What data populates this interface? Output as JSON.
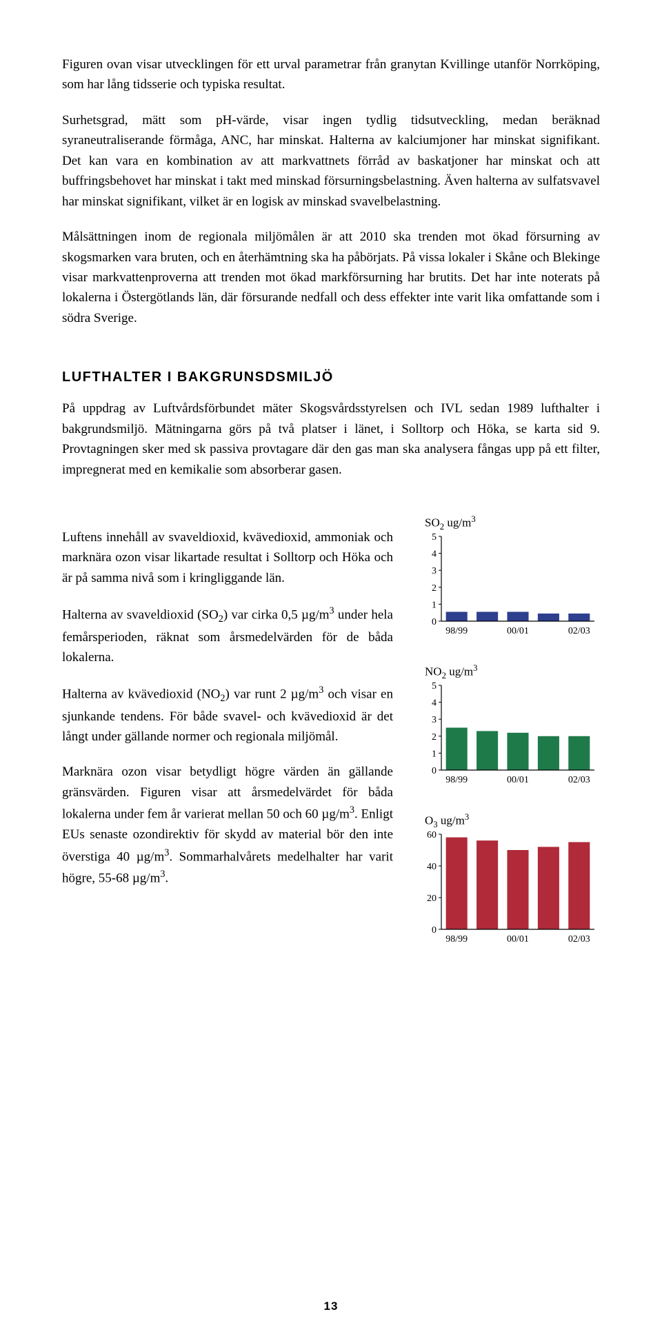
{
  "paragraphs": {
    "p1": "Figuren ovan visar utvecklingen för ett urval parametrar från granytan Kvillinge utanför Norrköping, som har lång tidsserie och typiska resultat.",
    "p2": "Surhetsgrad, mätt som pH-värde, visar ingen tydlig tidsutveckling, medan beräknad syraneutraliserande förmåga, ANC, har minskat. Halterna av kalciumjoner har minskat signifikant. Det kan vara en kombination av att markvattnets förråd av baskatjoner har minskat och att buffringsbehovet har minskat i takt med minskad försurningsbelastning. Även halterna av sulfatsvavel har minskat signifikant, vilket är en logisk av minskad svavelbelastning.",
    "p3": "Målsättningen inom de regionala miljömålen är att 2010 ska trenden mot ökad försurning av skogsmarken vara bruten, och en återhämtning ska ha påbörjats. På vissa lokaler i Skåne och Blekinge visar  markvattenproverna att trenden mot ökad markförsurning har brutits. Det har inte noterats på lokalerna i Östergötlands län, där försurande nedfall och dess effekter inte varit lika omfattande som i södra Sverige.",
    "h1": "LUFTHALTER I BAKGRUNSDSMILJÖ",
    "p4": "På uppdrag av Luftvårdsförbundet mäter Skogsvårdsstyrelsen och IVL sedan 1989 lufthalter i bakgrundsmiljö. Mätningarna görs på två platser i länet, i Solltorp och Höka, se karta sid 9. Provtagningen sker med sk passiva provtagare där den gas man ska analysera fångas upp på ett filter, impregnerat med en kemikalie som absorberar gasen.",
    "p5": "Luftens innehåll av svaveldioxid, kvävedioxid, ammoniak och marknära ozon visar likartade resultat i Solltorp och Höka och är på samma nivå som i kringliggande län.",
    "p6_a": "Halterna av svaveldioxid (SO",
    "p6_b": ") var cirka 0,5 µg/m",
    "p6_c": " under hela femårsperioden, räknat som årsmedelvärden för de båda lokalerna.",
    "p7_a": "Halterna av kvävedioxid (NO",
    "p7_b": ") var runt 2 µg/m",
    "p7_c": " och visar en sjunkande tendens. För både svavel- och kvävedioxid är det långt under gällande normer och regionala miljömål.",
    "p8_a": "Marknära ozon visar betydligt högre värden än gällande gränsvärden. Figuren visar att årsmedelvärdet för båda lokalerna under fem år varierat mellan 50 och 60 µg/m",
    "p8_b": ". Enligt EUs senaste ozondirektiv för skydd av material bör den inte överstiga 40 µg/m",
    "p8_c": ". Sommarhalvårets medelhalter har varit högre, 55-68 µg/m",
    "p8_d": "."
  },
  "sub2": "2",
  "sub3": "3",
  "sup3": "3",
  "charts": {
    "so2": {
      "title_a": "SO",
      "title_b": " ug/m",
      "type": "bar",
      "categories": [
        "98/99",
        "00/01",
        "02/03"
      ],
      "values": [
        0.55,
        0.55,
        0.55,
        0.45,
        0.45
      ],
      "bar_color": "#2e3f8e",
      "ymax": 5,
      "yticks": [
        0,
        1,
        2,
        3,
        4,
        5
      ],
      "axis_color": "#000000",
      "background": "#ffffff",
      "tick_fontsize": 14,
      "bar_width": 0.7
    },
    "no2": {
      "title_a": "NO",
      "title_b": " ug/m",
      "type": "bar",
      "categories": [
        "98/99",
        "00/01",
        "02/03"
      ],
      "values": [
        2.5,
        2.3,
        2.2,
        2.0,
        2.0
      ],
      "bar_color": "#1f7a4a",
      "ymax": 5,
      "yticks": [
        0,
        1,
        2,
        3,
        4,
        5
      ],
      "axis_color": "#000000",
      "background": "#ffffff",
      "tick_fontsize": 14,
      "bar_width": 0.7
    },
    "o3": {
      "title_a": "O",
      "title_b": " ug/m",
      "type": "bar",
      "categories": [
        "98/99",
        "00/01",
        "02/03"
      ],
      "values": [
        58,
        56,
        50,
        52,
        55
      ],
      "bar_color": "#b02a3a",
      "ymax": 60,
      "yticks": [
        0,
        20,
        40,
        60
      ],
      "axis_color": "#000000",
      "background": "#ffffff",
      "tick_fontsize": 14,
      "bar_width": 0.7
    }
  },
  "page_number": "13"
}
